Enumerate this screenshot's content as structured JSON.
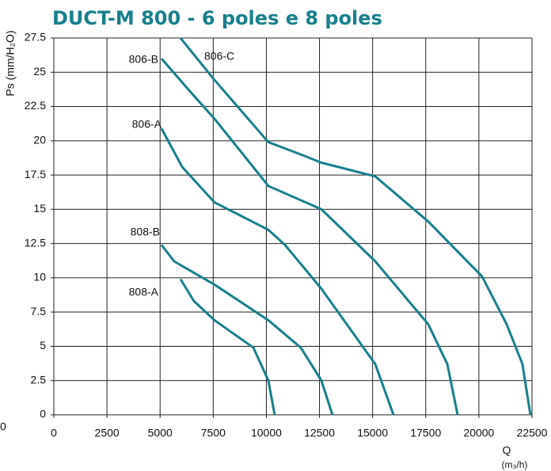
{
  "chart_data": {
    "type": "line",
    "title": "DUCT-M  800 - 6 poles e 8 poles",
    "y_label": "Ps (mm/H₂O)",
    "x_label": "Q",
    "x_unit": "(m₃/h)",
    "corner_label": "0",
    "color": "#17808c",
    "xlim": [
      0,
      22500
    ],
    "xticks": [
      0,
      2500,
      5000,
      7500,
      10000,
      12500,
      15000,
      17500,
      20000,
      22500
    ],
    "ylim": [
      0,
      27.5
    ],
    "yticks": [
      0,
      2.5,
      5,
      7.5,
      10,
      12.5,
      15,
      17.5,
      20,
      22.5,
      25,
      27.5
    ],
    "grid": true,
    "series": [
      {
        "name": "806-C",
        "x": [
          5960,
          7525,
          10095,
          11620,
          12590,
          15125,
          17620,
          20150,
          21310,
          22050,
          22425
        ],
        "values": [
          27.5,
          24.5,
          19.9,
          19.0,
          18.4,
          17.4,
          14.1,
          10.1,
          6.6,
          3.7,
          0
        ]
      },
      {
        "name": "806-B",
        "x": [
          5065,
          6410,
          7560,
          10095,
          12590,
          15125,
          17620,
          18515,
          19000
        ],
        "values": [
          26,
          23.6,
          21.6,
          16.7,
          15.0,
          11.2,
          6.6,
          3.7,
          0
        ]
      },
      {
        "name": "806-A",
        "x": [
          5065,
          6035,
          7560,
          10095,
          10875,
          12590,
          15125,
          15980
        ],
        "values": [
          20.9,
          18.1,
          15.5,
          13.5,
          12.4,
          9.2,
          3.7,
          0
        ]
      },
      {
        "name": "808-B",
        "x": [
          5065,
          5660,
          7560,
          10095,
          11620,
          12590,
          13110
        ],
        "values": [
          12.4,
          11.2,
          9.5,
          6.9,
          4.9,
          2.5,
          0
        ]
      },
      {
        "name": "808-A",
        "x": [
          5960,
          6590,
          7560,
          9390,
          10095,
          10390
        ],
        "values": [
          9.9,
          8.3,
          6.9,
          4.9,
          2.5,
          0
        ]
      }
    ]
  }
}
